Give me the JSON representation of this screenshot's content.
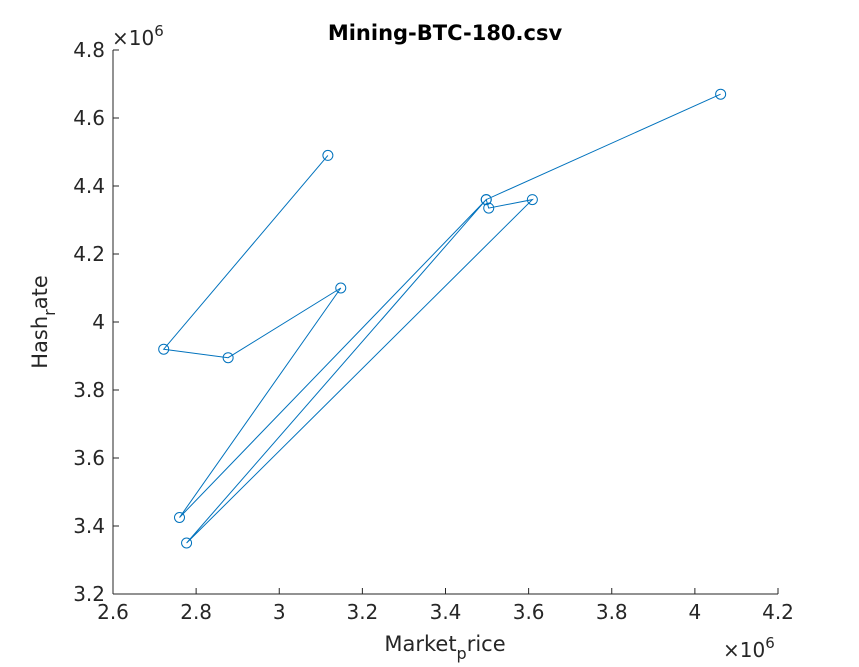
{
  "chart_data": {
    "type": "line",
    "title": "Mining-BTC-180.csv",
    "xlabel": {
      "base": "Market",
      "sub": "p",
      "rest": "rice"
    },
    "ylabel": {
      "base": "Hash",
      "sub": "r",
      "rest": "ate"
    },
    "xlim": [
      2.6,
      4.2
    ],
    "ylim": [
      3.2,
      4.8
    ],
    "x_ticks": [
      "2.6",
      "2.8",
      "3",
      "3.2",
      "3.4",
      "3.6",
      "3.8",
      "4",
      "4.2"
    ],
    "y_ticks": [
      "3.2",
      "3.4",
      "3.6",
      "3.8",
      "4",
      "4.2",
      "4.4",
      "4.6",
      "4.8"
    ],
    "x_exponent": {
      "base": "×10",
      "power": "6"
    },
    "y_exponent": {
      "base": "×10",
      "power": "6"
    },
    "marker": "circle",
    "grid": false,
    "colors": {
      "line": "#0072BD",
      "axis": "#262626"
    },
    "series": [
      {
        "x": [
          3.117,
          2.722,
          2.877,
          3.148,
          2.76,
          3.498,
          3.504,
          3.609,
          2.777,
          3.498,
          4.062
        ],
        "y": [
          4.49,
          3.92,
          3.895,
          4.1,
          3.425,
          4.36,
          4.335,
          4.36,
          3.35,
          4.36,
          4.67
        ]
      }
    ]
  }
}
